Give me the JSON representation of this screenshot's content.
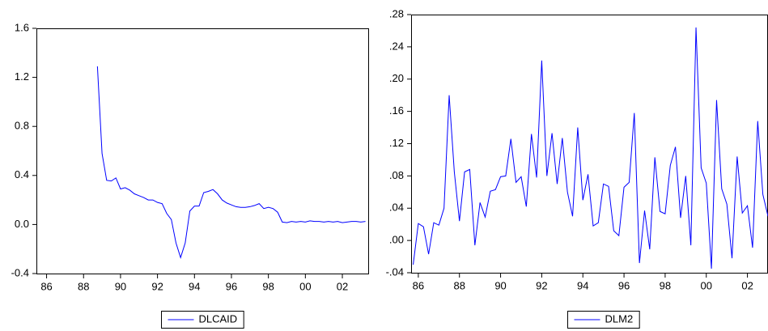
{
  "chart_data": [
    {
      "type": "line",
      "x": [
        1988.75,
        1989,
        1989.25,
        1989.5,
        1989.75,
        1990,
        1990.25,
        1990.5,
        1990.75,
        1991,
        1991.25,
        1991.5,
        1991.75,
        1992,
        1992.25,
        1992.5,
        1992.75,
        1993,
        1993.25,
        1993.5,
        1993.75,
        1994,
        1994.25,
        1994.5,
        1994.75,
        1995,
        1995.25,
        1995.5,
        1995.75,
        1996,
        1996.25,
        1996.5,
        1996.75,
        1997,
        1997.25,
        1997.5,
        1997.75,
        1998,
        1998.25,
        1998.5,
        1998.75,
        1999,
        1999.25,
        1999.5,
        1999.75,
        2000,
        2000.25,
        2000.5,
        2000.75,
        2001,
        2001.25,
        2001.5,
        2001.75,
        2002,
        2002.25,
        2002.5,
        2002.75,
        2003,
        2003.25
      ],
      "series": [
        {
          "name": "DLCAID",
          "color": "#0000ff",
          "values": [
            1.29,
            0.58,
            0.36,
            0.355,
            0.38,
            0.29,
            0.3,
            0.28,
            0.25,
            0.235,
            0.22,
            0.2,
            0.2,
            0.18,
            0.17,
            0.09,
            0.04,
            -0.15,
            -0.27,
            -0.15,
            0.11,
            0.15,
            0.15,
            0.26,
            0.27,
            0.285,
            0.25,
            0.2,
            0.175,
            0.16,
            0.145,
            0.14,
            0.14,
            0.145,
            0.155,
            0.17,
            0.13,
            0.14,
            0.13,
            0.1,
            0.02,
            0.015,
            0.025,
            0.02,
            0.025,
            0.02,
            0.03,
            0.025,
            0.025,
            0.02,
            0.025,
            0.02,
            0.025,
            0.015,
            0.02,
            0.025,
            0.025,
            0.02,
            0.025
          ]
        }
      ],
      "xlim": [
        1985.45,
        2003.4
      ],
      "xticks": [
        {
          "value": 1986,
          "label": "86"
        },
        {
          "value": 1988,
          "label": "88"
        },
        {
          "value": 1990,
          "label": "90"
        },
        {
          "value": 1992,
          "label": "92"
        },
        {
          "value": 1994,
          "label": "94"
        },
        {
          "value": 1996,
          "label": "96"
        },
        {
          "value": 1998,
          "label": "98"
        },
        {
          "value": 2000,
          "label": "00"
        },
        {
          "value": 2002,
          "label": "02"
        }
      ],
      "ylim": [
        -0.4,
        1.6
      ],
      "yticks": [
        -0.4,
        {
          "value": 0,
          "label": "0.0"
        },
        0.4,
        0.8,
        1.2,
        1.6
      ],
      "legend": "bottom"
    },
    {
      "type": "line",
      "x": [
        1985.75,
        1986,
        1986.25,
        1986.5,
        1986.75,
        1987,
        1987.25,
        1987.5,
        1987.75,
        1988,
        1988.25,
        1988.5,
        1988.75,
        1989,
        1989.25,
        1989.5,
        1989.75,
        1990,
        1990.25,
        1990.5,
        1990.75,
        1991,
        1991.25,
        1991.5,
        1991.75,
        1992,
        1992.25,
        1992.5,
        1992.75,
        1993,
        1993.25,
        1993.5,
        1993.75,
        1994,
        1994.25,
        1994.5,
        1994.75,
        1995,
        1995.25,
        1995.5,
        1995.75,
        1996,
        1996.25,
        1996.5,
        1996.75,
        1997,
        1997.25,
        1997.5,
        1997.75,
        1998,
        1998.25,
        1998.5,
        1998.75,
        1999,
        1999.25,
        1999.5,
        1999.75,
        2000,
        2000.25,
        2000.5,
        2000.75,
        2001,
        2001.25,
        2001.5,
        2001.75,
        2002,
        2002.25,
        2002.5,
        2002.75,
        2003
      ],
      "series": [
        {
          "name": "DLM2",
          "color": "#0000ff",
          "values": [
            -0.03,
            0.021,
            0.017,
            -0.017,
            0.022,
            0.019,
            0.04,
            0.18,
            0.085,
            0.024,
            0.085,
            0.088,
            -0.006,
            0.047,
            0.029,
            0.061,
            0.063,
            0.079,
            0.08,
            0.126,
            0.072,
            0.079,
            0.042,
            0.132,
            0.078,
            0.223,
            0.08,
            0.133,
            0.07,
            0.127,
            0.06,
            0.03,
            0.14,
            0.05,
            0.082,
            0.018,
            0.022,
            0.07,
            0.067,
            0.012,
            0.006,
            0.066,
            0.072,
            0.158,
            -0.028,
            0.037,
            -0.011,
            0.103,
            0.036,
            0.033,
            0.093,
            0.116,
            0.028,
            0.08,
            -0.006,
            0.264,
            0.09,
            0.071,
            -0.035,
            0.174,
            0.064,
            0.045,
            -0.022,
            0.104,
            0.034,
            0.043,
            -0.009,
            0.148,
            0.057,
            0.03
          ]
        }
      ],
      "xlim": [
        1985.65,
        2003
      ],
      "xticks": [
        {
          "value": 1986,
          "label": "86"
        },
        {
          "value": 1988,
          "label": "88"
        },
        {
          "value": 1990,
          "label": "90"
        },
        {
          "value": 1992,
          "label": "92"
        },
        {
          "value": 1994,
          "label": "94"
        },
        {
          "value": 1996,
          "label": "96"
        },
        {
          "value": 1998,
          "label": "98"
        },
        {
          "value": 2000,
          "label": "00"
        },
        {
          "value": 2002,
          "label": "02"
        }
      ],
      "ylim": [
        -0.04,
        0.28
      ],
      "yticks": [
        {
          "value": -0.04,
          "label": "-.04"
        },
        {
          "value": 0,
          "label": ".00"
        },
        {
          "value": 0.04,
          "label": ".04"
        },
        {
          "value": 0.08,
          "label": ".08"
        },
        {
          "value": 0.12,
          "label": ".12"
        },
        {
          "value": 0.16,
          "label": ".16"
        },
        {
          "value": 0.2,
          "label": ".20"
        },
        {
          "value": 0.24,
          "label": ".24"
        },
        {
          "value": 0.28,
          "label": ".28"
        }
      ],
      "legend": "bottom"
    }
  ]
}
